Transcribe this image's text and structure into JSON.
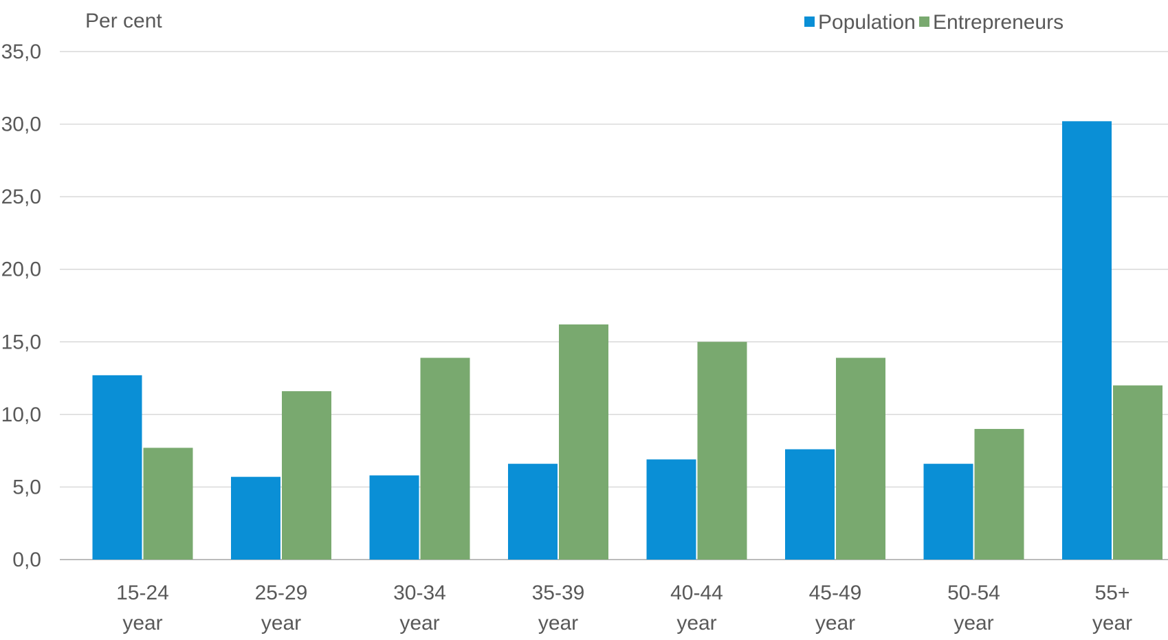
{
  "chart_data": {
    "type": "bar",
    "ylabel": "Per cent",
    "categories": [
      [
        "15-24",
        "year"
      ],
      [
        "25-29",
        "year"
      ],
      [
        "30-34",
        "year"
      ],
      [
        "35-39",
        "year"
      ],
      [
        "40-44",
        "year"
      ],
      [
        "45-49",
        "year"
      ],
      [
        "50-54",
        "year"
      ],
      [
        "55+",
        "year"
      ]
    ],
    "series": [
      {
        "name": "Population",
        "color": "#0a8fd6",
        "values": [
          12.7,
          5.7,
          5.8,
          6.6,
          6.9,
          7.6,
          6.6,
          30.2
        ]
      },
      {
        "name": "Entrepreneurs",
        "color": "#79a96f",
        "values": [
          7.7,
          11.6,
          13.9,
          16.2,
          15.0,
          13.9,
          9.0,
          12.0
        ]
      }
    ],
    "ylim": [
      0,
      35
    ],
    "yticks": [
      "0,0",
      "5,0",
      "10,0",
      "15,0",
      "20,0",
      "25,0",
      "30,0",
      "35,0"
    ],
    "grid": true,
    "legend_position": "top-right"
  }
}
